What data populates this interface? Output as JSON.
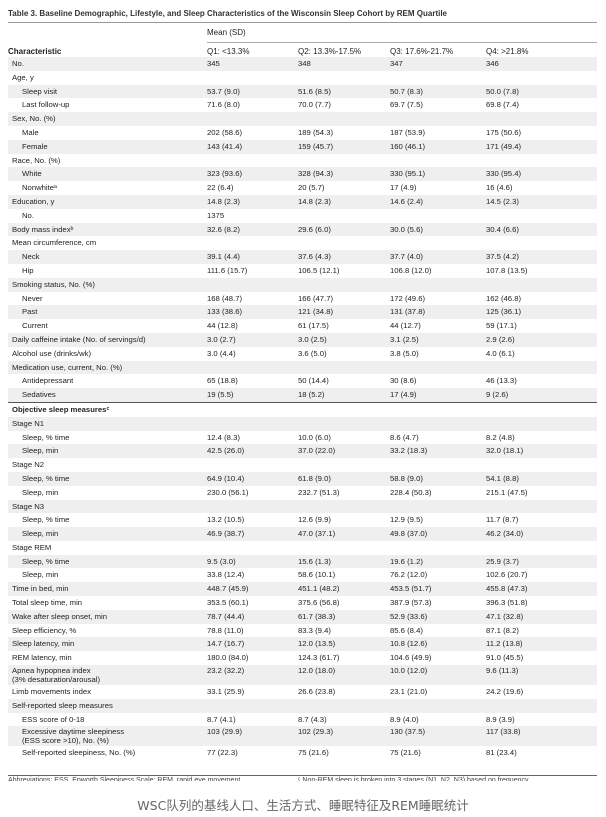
{
  "title": "Table 3. Baseline Demographic, Lifestyle, and Sleep Characteristics of the Wisconsin Sleep Cohort by REM Quartile",
  "header": {
    "group_label": "Mean (SD)",
    "characteristic": "Characteristic",
    "columns": [
      "Q1: <13.3%",
      "Q2: 13.3%-17.5%",
      "Q3: 17.6%-21.7%",
      "Q4: >21.8%"
    ]
  },
  "rows": [
    {
      "label": "No.",
      "indent": false,
      "values": [
        "345",
        "348",
        "347",
        "346"
      ]
    },
    {
      "label": "Age, y",
      "indent": false,
      "values": [
        "",
        "",
        "",
        ""
      ]
    },
    {
      "label": "Sleep visit",
      "indent": true,
      "values": [
        "53.7 (9.0)",
        "51.6 (8.5)",
        "50.7 (8.3)",
        "50.0 (7.8)"
      ]
    },
    {
      "label": "Last follow-up",
      "indent": true,
      "values": [
        "71.6 (8.0)",
        "70.0 (7.7)",
        "69.7 (7.5)",
        "69.8 (7.4)"
      ]
    },
    {
      "label": "Sex, No. (%)",
      "indent": false,
      "values": [
        "",
        "",
        "",
        ""
      ]
    },
    {
      "label": "Male",
      "indent": true,
      "values": [
        "202 (58.6)",
        "189 (54.3)",
        "187 (53.9)",
        "175 (50.6)"
      ]
    },
    {
      "label": "Female",
      "indent": true,
      "values": [
        "143 (41.4)",
        "159 (45.7)",
        "160 (46.1)",
        "171 (49.4)"
      ]
    },
    {
      "label": "Race, No. (%)",
      "indent": false,
      "values": [
        "",
        "",
        "",
        ""
      ]
    },
    {
      "label": "White",
      "indent": true,
      "values": [
        "323 (93.6)",
        "328 (94.3)",
        "330 (95.1)",
        "330 (95.4)"
      ]
    },
    {
      "label": "Nonwhiteᵃ",
      "indent": true,
      "values": [
        "22 (6.4)",
        "20 (5.7)",
        "17 (4.9)",
        "16 (4.6)"
      ]
    },
    {
      "label": "Education, y",
      "indent": false,
      "values": [
        "14.8 (2.3)",
        "14.8 (2.3)",
        "14.6 (2.4)",
        "14.5 (2.3)"
      ]
    },
    {
      "label": "No.",
      "indent": true,
      "values": [
        "1375",
        "",
        "",
        ""
      ]
    },
    {
      "label": "Body mass indexᵇ",
      "indent": false,
      "values": [
        "32.6 (8.2)",
        "29.6 (6.0)",
        "30.0 (5.6)",
        "30.4 (6.6)"
      ]
    },
    {
      "label": "Mean circumference, cm",
      "indent": false,
      "values": [
        "",
        "",
        "",
        ""
      ]
    },
    {
      "label": "Neck",
      "indent": true,
      "values": [
        "39.1 (4.4)",
        "37.6 (4.3)",
        "37.7 (4.0)",
        "37.5 (4.2)"
      ]
    },
    {
      "label": "Hip",
      "indent": true,
      "values": [
        "111.6 (15.7)",
        "106.5 (12.1)",
        "106.8 (12.0)",
        "107.8 (13.5)"
      ]
    },
    {
      "label": "Smoking status, No. (%)",
      "indent": false,
      "values": [
        "",
        "",
        "",
        ""
      ]
    },
    {
      "label": "Never",
      "indent": true,
      "values": [
        "168 (48.7)",
        "166 (47.7)",
        "172 (49.6)",
        "162 (46.8)"
      ]
    },
    {
      "label": "Past",
      "indent": true,
      "values": [
        "133 (38.6)",
        "121 (34.8)",
        "131 (37.8)",
        "125 (36.1)"
      ]
    },
    {
      "label": "Current",
      "indent": true,
      "values": [
        "44 (12.8)",
        "61 (17.5)",
        "44 (12.7)",
        "59 (17.1)"
      ]
    },
    {
      "label": "Daily caffeine intake (No. of servings/d)",
      "indent": false,
      "values": [
        "3.0 (2.7)",
        "3.0 (2.5)",
        "3.1 (2.5)",
        "2.9 (2.6)"
      ]
    },
    {
      "label": "Alcohol use (drinks/wk)",
      "indent": false,
      "values": [
        "3.0 (4.4)",
        "3.6 (5.0)",
        "3.8 (5.0)",
        "4.0 (6.1)"
      ]
    },
    {
      "label": "Medication use, current, No. (%)",
      "indent": false,
      "values": [
        "",
        "",
        "",
        ""
      ]
    },
    {
      "label": "Antidepressant",
      "indent": true,
      "values": [
        "65 (18.8)",
        "50 (14.4)",
        "30 (8.6)",
        "46 (13.3)"
      ]
    },
    {
      "label": "Sedatives",
      "indent": true,
      "values": [
        "19 (5.5)",
        "18 (5.2)",
        "17 (4.9)",
        "9 (2.6)"
      ]
    },
    {
      "label": "Objective sleep measuresᶜ",
      "indent": false,
      "bold": true,
      "section": true,
      "values": [
        "",
        "",
        "",
        ""
      ]
    },
    {
      "label": "Stage N1",
      "indent": false,
      "values": [
        "",
        "",
        "",
        ""
      ]
    },
    {
      "label": "Sleep, % time",
      "indent": true,
      "values": [
        "12.4 (8.3)",
        "10.0 (6.0)",
        "8.6 (4.7)",
        "8.2 (4.8)"
      ]
    },
    {
      "label": "Sleep, min",
      "indent": true,
      "values": [
        "42.5 (26.0)",
        "37.0 (22.0)",
        "33.2 (18.3)",
        "32.0 (18.1)"
      ]
    },
    {
      "label": "Stage N2",
      "indent": false,
      "values": [
        "",
        "",
        "",
        ""
      ]
    },
    {
      "label": "Sleep, % time",
      "indent": true,
      "values": [
        "64.9 (10.4)",
        "61.8 (9.0)",
        "58.8 (9.0)",
        "54.1 (8.8)"
      ]
    },
    {
      "label": "Sleep, min",
      "indent": true,
      "values": [
        "230.0 (56.1)",
        "232.7 (51.3)",
        "228.4 (50.3)",
        "215.1 (47.5)"
      ]
    },
    {
      "label": "Stage N3",
      "indent": false,
      "values": [
        "",
        "",
        "",
        ""
      ]
    },
    {
      "label": "Sleep, % time",
      "indent": true,
      "values": [
        "13.2 (10.5)",
        "12.6 (9.9)",
        "12.9 (9.5)",
        "11.7 (8.7)"
      ]
    },
    {
      "label": "Sleep, min",
      "indent": true,
      "values": [
        "46.9 (38.7)",
        "47.0 (37.1)",
        "49.8 (37.0)",
        "46.2 (34.0)"
      ]
    },
    {
      "label": "Stage REM",
      "indent": false,
      "values": [
        "",
        "",
        "",
        ""
      ]
    },
    {
      "label": "Sleep, % time",
      "indent": true,
      "values": [
        "9.5 (3.0)",
        "15.6 (1.3)",
        "19.6 (1.2)",
        "25.9 (3.7)"
      ]
    },
    {
      "label": "Sleep, min",
      "indent": true,
      "values": [
        "33.8 (12.4)",
        "58.6 (10.1)",
        "76.2 (12.0)",
        "102.6 (20.7)"
      ]
    },
    {
      "label": "Time in bed, min",
      "indent": false,
      "values": [
        "448.7 (45.9)",
        "451.1 (48.2)",
        "453.5 (51.7)",
        "455.8 (47.3)"
      ]
    },
    {
      "label": "Total sleep time, min",
      "indent": false,
      "values": [
        "353.5 (60.1)",
        "375.6 (56.8)",
        "387.9 (57.3)",
        "396.3 (51.8)"
      ]
    },
    {
      "label": "Wake after sleep onset, min",
      "indent": false,
      "values": [
        "78.7 (44.4)",
        "61.7 (38.3)",
        "52.9 (33.6)",
        "47.1 (32.8)"
      ]
    },
    {
      "label": "Sleep efficiency, %",
      "indent": false,
      "values": [
        "78.8 (11.0)",
        "83.3 (9.4)",
        "85.6 (8.4)",
        "87.1 (8.2)"
      ]
    },
    {
      "label": "Sleep latency, min",
      "indent": false,
      "values": [
        "14.7 (16.7)",
        "12.0 (13.5)",
        "10.8 (12.6)",
        "11.2 (13.8)"
      ]
    },
    {
      "label": "REM latency, min",
      "indent": false,
      "values": [
        "180.0 (84.0)",
        "124.3 (61.7)",
        "104.6 (49.9)",
        "91.0 (45.5)"
      ]
    },
    {
      "label": "Apnea hypopnea index",
      "label2": "(3% desaturation/arousal)",
      "tall": true,
      "indent": false,
      "values": [
        "23.2 (32.2)",
        "12.0 (18.0)",
        "10.0 (12.0)",
        "9.6 (11.3)"
      ]
    },
    {
      "label": "Limb movements index",
      "indent": false,
      "values": [
        "33.1 (25.9)",
        "26.6 (23.8)",
        "23.1 (21.0)",
        "24.2 (19.6)"
      ]
    },
    {
      "label": "Self-reported sleep measures",
      "indent": false,
      "values": [
        "",
        "",
        "",
        ""
      ]
    },
    {
      "label": "ESS score of 0-18",
      "indent": true,
      "values": [
        "8.7 (4.1)",
        "8.7 (4.3)",
        "8.9 (4.0)",
        "8.9 (3.9)"
      ]
    },
    {
      "label": "Excessive daytime sleepiness",
      "label2": "(ESS score >10), No. (%)",
      "tall": true,
      "indent": true,
      "values": [
        "103 (29.9)",
        "102 (29.3)",
        "130 (37.5)",
        "117 (33.8)"
      ]
    },
    {
      "label": "Self-reported sleepiness, No. (%)",
      "indent": true,
      "values": [
        "77 (22.3)",
        "75 (21.6)",
        "75 (21.6)",
        "81 (23.4)"
      ]
    }
  ],
  "footnotes": {
    "left": "Abbreviations: ESS, Epworth Sleepiness Scale; REM, rapid eye movement.",
    "right": "ᶜ Non-REM sleep is broken into 3 stages (N1, N2, N3) based on frequency."
  },
  "caption": "WSC队列的基线人口、生活方式、睡眠特征及REM睡眠统计"
}
